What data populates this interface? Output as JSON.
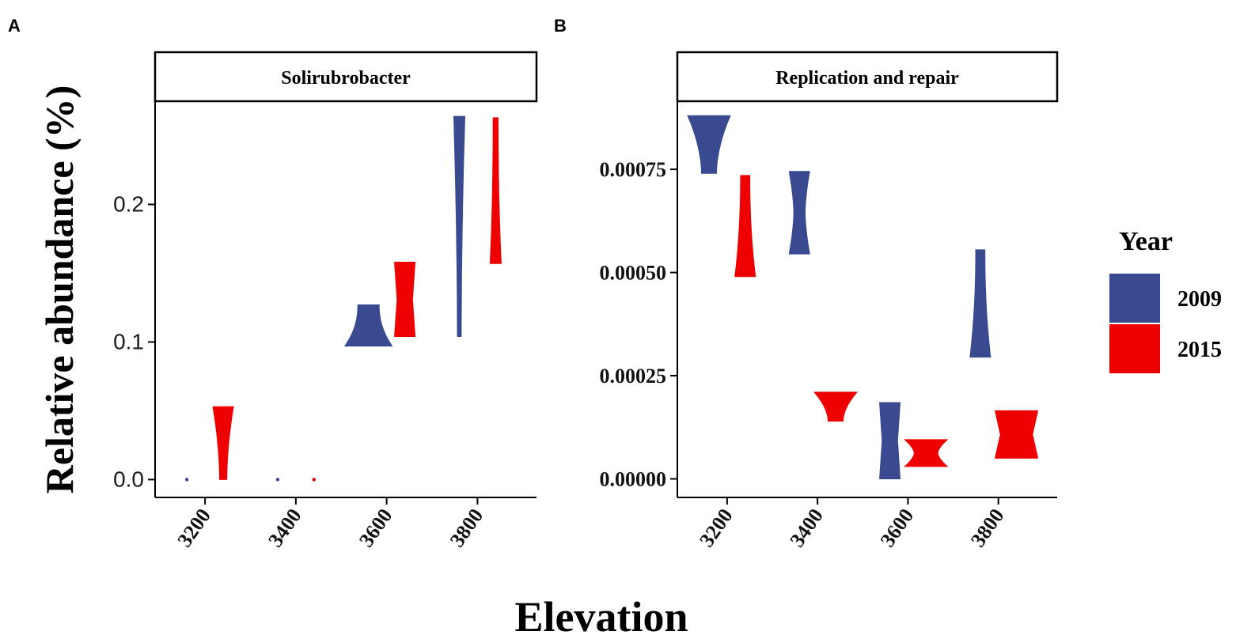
{
  "figure": {
    "ylabel": "Relative abundance (%)",
    "xlabel": "Elevation",
    "legend": {
      "title": "Year",
      "entries": [
        {
          "label": "2009",
          "color": "#3A4A91"
        },
        {
          "label": "2015",
          "color": "#EE0000"
        }
      ]
    }
  },
  "chart_data": [
    {
      "type": "violin",
      "panel_label": "A",
      "title": "Solirubrobacter",
      "xlabel": "Elevation",
      "ylabel": "Relative abundance (%)",
      "x_ticks": [
        "3200",
        "3400",
        "3600",
        "3800"
      ],
      "xlim": [
        3090,
        3930
      ],
      "ylim": [
        -0.013,
        0.275
      ],
      "y_ticks": [
        {
          "value": 0.0,
          "label": "0.0"
        },
        {
          "value": 0.1,
          "label": "0.1"
        },
        {
          "value": 0.2,
          "label": "0.2"
        }
      ],
      "series": [
        {
          "name": "2009",
          "color": "#3A4A91",
          "violins": [
            {
              "x": 3160,
              "min": 0.0,
              "max": 0.0
            },
            {
              "x": 3360,
              "min": 0.0,
              "max": 0.0
            },
            {
              "x": 3560,
              "min": 0.097,
              "max": 0.127
            },
            {
              "x": 3760,
              "min": 0.104,
              "max": 0.264
            }
          ]
        },
        {
          "name": "2015",
          "color": "#EE0000",
          "violins": [
            {
              "x": 3240,
              "min": 0.0,
              "max": 0.053
            },
            {
              "x": 3440,
              "min": 0.0,
              "max": 0.0
            },
            {
              "x": 3640,
              "min": 0.104,
              "max": 0.158
            },
            {
              "x": 3840,
              "min": 0.157,
              "max": 0.263
            }
          ]
        }
      ]
    },
    {
      "type": "violin",
      "panel_label": "B",
      "title": "Replication and repair",
      "xlabel": "Elevation",
      "ylabel": "Relative abundance (%)",
      "x_ticks": [
        "3200",
        "3400",
        "3600",
        "3800"
      ],
      "xlim": [
        3090,
        3930
      ],
      "ylim": [
        -4.5e-05,
        0.000915
      ],
      "y_ticks": [
        {
          "value": 0.0,
          "label": "0.00000"
        },
        {
          "value": 0.00025,
          "label": "0.00025"
        },
        {
          "value": 0.0005,
          "label": "0.00050"
        },
        {
          "value": 0.00075,
          "label": "0.00075"
        }
      ],
      "series": [
        {
          "name": "2009",
          "color": "#3A4A91",
          "violins": [
            {
              "x": 3160,
              "min": 0.00074,
              "max": 0.00088
            },
            {
              "x": 3360,
              "min": 0.000545,
              "max": 0.000745
            },
            {
              "x": 3560,
              "min": 0.0,
              "max": 0.000185
            },
            {
              "x": 3760,
              "min": 0.000295,
              "max": 0.000555
            }
          ]
        },
        {
          "name": "2015",
          "color": "#EE0000",
          "violins": [
            {
              "x": 3240,
              "min": 0.00049,
              "max": 0.000735
            },
            {
              "x": 3440,
              "min": 0.00014,
              "max": 0.00021
            },
            {
              "x": 3640,
              "min": 3e-05,
              "max": 9.5e-05
            },
            {
              "x": 3840,
              "min": 5e-05,
              "max": 0.000165
            }
          ]
        }
      ]
    }
  ]
}
